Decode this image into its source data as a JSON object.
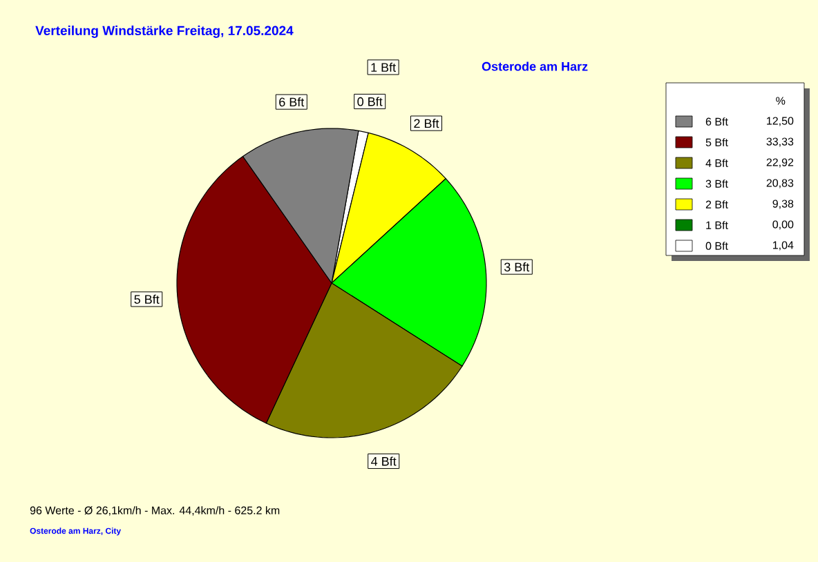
{
  "chart_data": {
    "type": "pie",
    "title": "Verteilung Windstärke  Freitag, 17.05.2024",
    "subtitle": "Osterode am Harz",
    "categories": [
      "0 Bft",
      "1 Bft",
      "2 Bft",
      "3 Bft",
      "4 Bft",
      "5 Bft",
      "6 Bft"
    ],
    "values": [
      1.04,
      0.0,
      9.38,
      20.83,
      22.92,
      33.33,
      12.5
    ],
    "value_labels": [
      "1,04",
      "0,00",
      "9,38",
      "20,83",
      "22,92",
      "33,33",
      "12,50"
    ],
    "colors": [
      "#ffffff",
      "#008000",
      "#ffff00",
      "#00ff00",
      "#808000",
      "#800000",
      "#808080"
    ],
    "legend": "right",
    "legend_title": "%",
    "annotations": [
      "96 Werte   -   Ø 26,1km/h  -  Max. 44,4km/h   -   625.2 km",
      "Osterode am Harz, City"
    ]
  }
}
